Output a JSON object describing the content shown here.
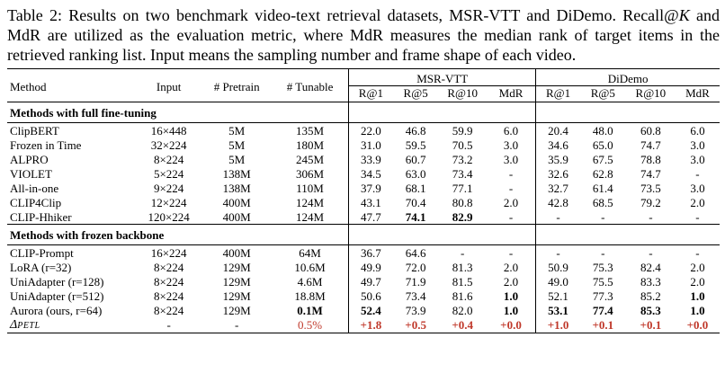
{
  "caption": {
    "label": "Table 2:",
    "text_before_k": " Results on two benchmark video-text retrieval datasets, MSR-VTT and DiDemo. Recall@",
    "k": "K",
    "text_after_k": " and MdR are utilized as the evaluation metric, where MdR measures the median rank of target items in the retrieved ranking list. Input means the sampling number and frame shape of each video."
  },
  "headers": {
    "method": "Method",
    "input": "Input",
    "pretrain": "# Pretrain",
    "tunable": "# Tunable",
    "msrvtt": "MSR-VTT",
    "didemo": "DiDemo",
    "metrics": [
      "R@1",
      "R@5",
      "R@10",
      "MdR",
      "R@1",
      "R@5",
      "R@10",
      "MdR"
    ]
  },
  "sections": [
    {
      "title": "Methods with full fine-tuning",
      "rows": [
        {
          "method": "ClipBERT",
          "input": "16×448",
          "pretrain": "5M",
          "tunable": "135M",
          "vals": [
            "22.0",
            "46.8",
            "59.9",
            "6.0",
            "20.4",
            "48.0",
            "60.8",
            "6.0"
          ]
        },
        {
          "method": "Frozen in Time",
          "input": "32×224",
          "pretrain": "5M",
          "tunable": "180M",
          "vals": [
            "31.0",
            "59.5",
            "70.5",
            "3.0",
            "34.6",
            "65.0",
            "74.7",
            "3.0"
          ]
        },
        {
          "method": "ALPRO",
          "input": "8×224",
          "pretrain": "5M",
          "tunable": "245M",
          "vals": [
            "33.9",
            "60.7",
            "73.2",
            "3.0",
            "35.9",
            "67.5",
            "78.8",
            "3.0"
          ]
        },
        {
          "method": "VIOLET",
          "input": "5×224",
          "pretrain": "138M",
          "tunable": "306M",
          "vals": [
            "34.5",
            "63.0",
            "73.4",
            "-",
            "32.6",
            "62.8",
            "74.7",
            "-"
          ]
        },
        {
          "method": "All-in-one",
          "input": "9×224",
          "pretrain": "138M",
          "tunable": "110M",
          "vals": [
            "37.9",
            "68.1",
            "77.1",
            "-",
            "32.7",
            "61.4",
            "73.5",
            "3.0"
          ]
        },
        {
          "method": "CLIP4Clip",
          "input": "12×224",
          "pretrain": "400M",
          "tunable": "124M",
          "vals": [
            "43.1",
            "70.4",
            "80.8",
            "2.0",
            "42.8",
            "68.5",
            "79.2",
            "2.0"
          ]
        },
        {
          "method": "CLIP-Hhiker",
          "input": "120×224",
          "pretrain": "400M",
          "tunable": "124M",
          "vals": [
            "47.7",
            "74.1",
            "82.9",
            "-",
            "-",
            "-",
            "-",
            "-"
          ],
          "bold": [
            1,
            2
          ]
        }
      ]
    },
    {
      "title": "Methods with frozen backbone",
      "rows": [
        {
          "method": "CLIP-Prompt",
          "input": "16×224",
          "pretrain": "400M",
          "tunable": "64M",
          "vals": [
            "36.7",
            "64.6",
            "-",
            "-",
            "-",
            "-",
            "-",
            "-"
          ]
        },
        {
          "method": "LoRA (r=32)",
          "input": "8×224",
          "pretrain": "129M",
          "tunable": "10.6M",
          "vals": [
            "49.9",
            "72.0",
            "81.3",
            "2.0",
            "50.9",
            "75.3",
            "82.4",
            "2.0"
          ]
        },
        {
          "method": "UniAdapter (r=128)",
          "input": "8×224",
          "pretrain": "129M",
          "tunable": "4.6M",
          "vals": [
            "49.7",
            "71.9",
            "81.5",
            "2.0",
            "49.0",
            "75.5",
            "83.3",
            "2.0"
          ]
        },
        {
          "method": "UniAdapter (r=512)",
          "input": "8×224",
          "pretrain": "129M",
          "tunable": "18.8M",
          "vals": [
            "50.6",
            "73.4",
            "81.6",
            "1.0",
            "52.1",
            "77.3",
            "85.2",
            "1.0"
          ],
          "bold": [
            3,
            7
          ]
        },
        {
          "method": "Aurora (ours, r=64)",
          "input": "8×224",
          "pretrain": "129M",
          "tunable": "0.1M",
          "vals": [
            "52.4",
            "73.9",
            "82.0",
            "1.0",
            "53.1",
            "77.4",
            "85.3",
            "1.0"
          ],
          "bold": [
            0,
            3,
            4,
            5,
            6,
            7
          ],
          "tunable_bold": true
        }
      ]
    }
  ],
  "delta_row": {
    "method_symbol": "Δ",
    "method_sub": "PETL",
    "input": "-",
    "pretrain": "-",
    "tunable": "0.5%",
    "vals": [
      "+1.8",
      "+0.5",
      "+0.4",
      "+0.0",
      "+1.0",
      "+0.1",
      "+0.1",
      "+0.0"
    ],
    "color": "#c0392b"
  }
}
